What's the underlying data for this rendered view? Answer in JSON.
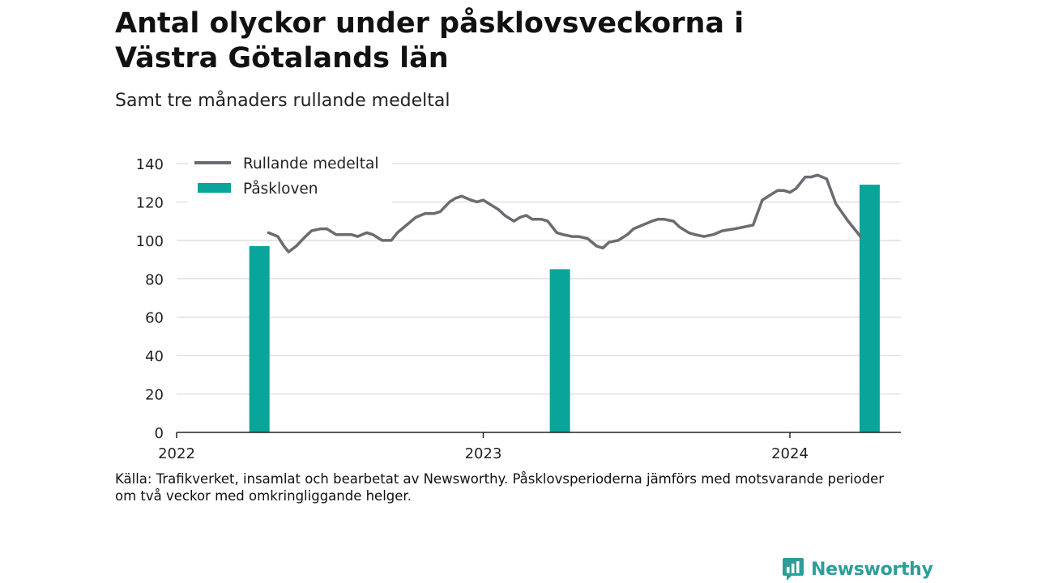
{
  "header": {
    "title": "Antal olyckor under påsklovsveckorna i Västra Götalands län",
    "subtitle": "Samt tre månaders rullande medeltal"
  },
  "footer": {
    "source_line1": "Källa: Trafikverket, insamlat och bearbetat av Newsworthy. Påsklovsperioderna jämförs med motsvarande perioder",
    "source_line2": "om två veckor med omkringliggande helger.",
    "brand": "Newsworthy"
  },
  "colors": {
    "line": "#6b6b72",
    "bar": "#0aa59a",
    "grid": "#d9d9d9",
    "axis": "#222222",
    "brand": "#2b9e9a"
  },
  "chart_data": {
    "type": "bar",
    "title": "Antal olyckor under påsklovsveckorna i Västra Götalands län",
    "subtitle": "Samt tre månaders rullande medeltal",
    "xlabel": "",
    "ylabel": "",
    "ylim": [
      0,
      140
    ],
    "yticks": [
      0,
      20,
      40,
      60,
      80,
      100,
      120,
      140
    ],
    "xlim": [
      2022.0,
      2024.4
    ],
    "xticks": [
      {
        "value": 2022,
        "label": "2022"
      },
      {
        "value": 2023,
        "label": "2023"
      },
      {
        "value": 2024,
        "label": "2024"
      }
    ],
    "grid": true,
    "legend": {
      "placement": "top-left",
      "entries": [
        "Rullande medeltal",
        "Påskloven"
      ]
    },
    "series": [
      {
        "name": "Påskloven",
        "type": "bar",
        "points": [
          {
            "x": 2022.27,
            "y": 97
          },
          {
            "x": 2023.25,
            "y": 85
          },
          {
            "x": 2024.26,
            "y": 129
          }
        ]
      },
      {
        "name": "Rullande medeltal",
        "type": "line",
        "points": [
          [
            2022.3,
            104
          ],
          [
            2022.33,
            102
          ],
          [
            2022.35,
            97
          ],
          [
            2022.365,
            94
          ],
          [
            2022.39,
            97
          ],
          [
            2022.42,
            102
          ],
          [
            2022.44,
            105
          ],
          [
            2022.47,
            106
          ],
          [
            2022.49,
            106
          ],
          [
            2022.52,
            103
          ],
          [
            2022.55,
            103
          ],
          [
            2022.57,
            103
          ],
          [
            2022.59,
            102
          ],
          [
            2022.62,
            104
          ],
          [
            2022.64,
            103
          ],
          [
            2022.67,
            100
          ],
          [
            2022.7,
            100
          ],
          [
            2022.72,
            104
          ],
          [
            2022.75,
            108
          ],
          [
            2022.78,
            112
          ],
          [
            2022.81,
            114
          ],
          [
            2022.84,
            114
          ],
          [
            2022.86,
            115
          ],
          [
            2022.89,
            120
          ],
          [
            2022.91,
            122
          ],
          [
            2022.93,
            123
          ],
          [
            2022.96,
            121
          ],
          [
            2022.98,
            120
          ],
          [
            2023.0,
            121
          ],
          [
            2023.03,
            118
          ],
          [
            2023.05,
            116
          ],
          [
            2023.07,
            113
          ],
          [
            2023.1,
            110
          ],
          [
            2023.12,
            112
          ],
          [
            2023.14,
            113
          ],
          [
            2023.16,
            111
          ],
          [
            2023.19,
            111
          ],
          [
            2023.21,
            110
          ],
          [
            2023.24,
            104
          ],
          [
            2023.26,
            103
          ],
          [
            2023.29,
            102
          ],
          [
            2023.31,
            102
          ],
          [
            2023.34,
            101
          ],
          [
            2023.37,
            97
          ],
          [
            2023.39,
            96
          ],
          [
            2023.41,
            99
          ],
          [
            2023.44,
            100
          ],
          [
            2023.47,
            103
          ],
          [
            2023.49,
            106
          ],
          [
            2023.52,
            108
          ],
          [
            2023.55,
            110
          ],
          [
            2023.57,
            111
          ],
          [
            2023.59,
            111
          ],
          [
            2023.62,
            110
          ],
          [
            2023.64,
            107
          ],
          [
            2023.67,
            104
          ],
          [
            2023.69,
            103
          ],
          [
            2023.72,
            102
          ],
          [
            2023.75,
            103
          ],
          [
            2023.78,
            105
          ],
          [
            2023.82,
            106
          ],
          [
            2023.85,
            107
          ],
          [
            2023.88,
            108
          ],
          [
            2023.91,
            121
          ],
          [
            2023.94,
            124
          ],
          [
            2023.96,
            126
          ],
          [
            2023.98,
            126
          ],
          [
            2024.0,
            125
          ],
          [
            2024.02,
            127
          ],
          [
            2024.05,
            133
          ],
          [
            2024.07,
            133
          ],
          [
            2024.09,
            134
          ],
          [
            2024.12,
            132
          ],
          [
            2024.15,
            119
          ],
          [
            2024.19,
            110
          ],
          [
            2024.22,
            104
          ],
          [
            2024.23,
            102
          ]
        ]
      }
    ]
  }
}
